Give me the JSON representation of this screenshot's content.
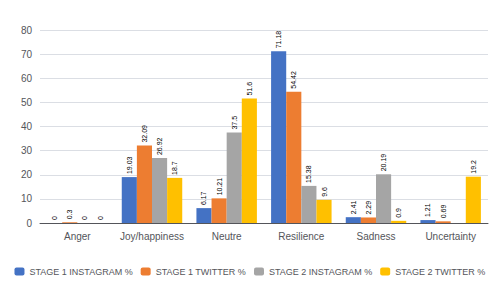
{
  "chart_data": {
    "type": "bar",
    "categories": [
      "Anger",
      "Joy/happiness",
      "Neutre",
      "Resilience",
      "Sadness",
      "Uncertainty"
    ],
    "series": [
      {
        "name": "STAGE 1 INSTAGRAM %",
        "color": "#4472C4",
        "values": [
          0,
          19.03,
          6.17,
          71.18,
          2.41,
          1.21
        ]
      },
      {
        "name": "STAGE 1 TWITTER %",
        "color": "#ED7D31",
        "values": [
          0.3,
          32.09,
          10.21,
          54.42,
          2.29,
          0.69
        ]
      },
      {
        "name": "STAGE 2 INSTAGRAM %",
        "color": "#A5A5A5",
        "values": [
          0,
          26.92,
          37.5,
          15.38,
          20.19,
          0
        ],
        "value_labels": [
          "0",
          "26.92",
          "37.5",
          "15.38",
          "20.19",
          null
        ]
      },
      {
        "name": "STAGE 2 TWITTER %",
        "color": "#FFC000",
        "values": [
          0,
          18.7,
          51.6,
          9.6,
          0.9,
          19.2
        ]
      }
    ],
    "ylim": [
      0,
      80
    ],
    "yticks": [
      0,
      10,
      20,
      30,
      40,
      50,
      60,
      70,
      80
    ],
    "grid": true,
    "legend": "bottom",
    "data_labels": true
  }
}
